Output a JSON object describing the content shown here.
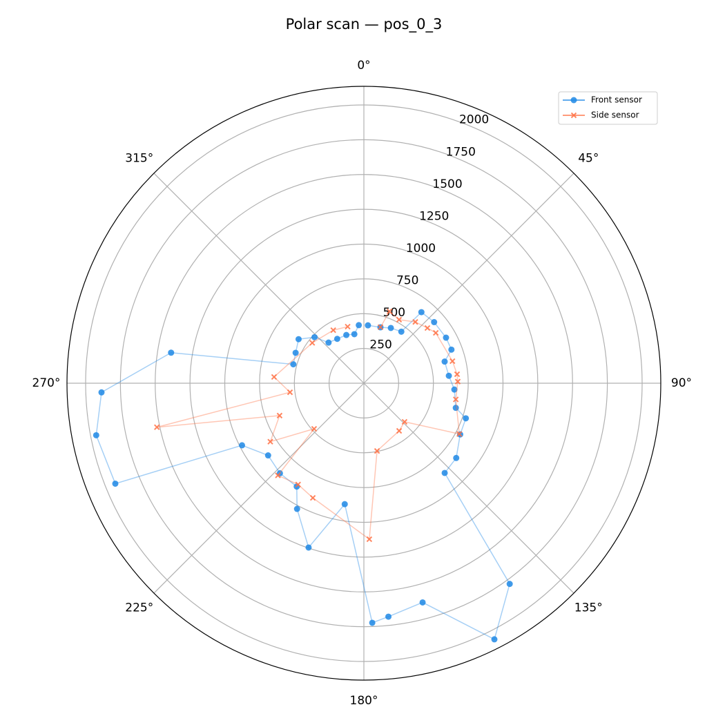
{
  "chart_data": {
    "type": "polar",
    "title": "Polar scan — pos_0_3",
    "theta_zero": "top",
    "theta_direction": "clockwise",
    "rlim": [
      0,
      2134
    ],
    "rticks": [
      250,
      500,
      750,
      1000,
      1250,
      1500,
      1750,
      2000
    ],
    "thetaticks": [
      {
        "value": 0,
        "label": "0°"
      },
      {
        "value": 45,
        "label": "45°"
      },
      {
        "value": 90,
        "label": "90°"
      },
      {
        "value": 135,
        "label": "135°"
      },
      {
        "value": 180,
        "label": "180°"
      },
      {
        "value": 225,
        "label": "225°"
      },
      {
        "value": 270,
        "label": "270°"
      },
      {
        "value": 315,
        "label": "315°"
      }
    ],
    "grid": true,
    "legend": "upper right",
    "series": [
      {
        "name": "Front sensor",
        "color": "#1e88e5",
        "marker": "o",
        "theta": [
          4,
          16.5,
          26,
          36,
          39,
          49,
          61,
          69,
          75,
          85,
          94,
          105,
          109,
          118,
          129,
          138,
          144,
          153,
          165,
          174,
          178,
          189,
          198.6,
          208,
          213,
          223,
          233,
          243,
          248,
          259,
          268,
          279,
          285,
          294,
          304,
          313,
          319,
          329,
          340,
          349,
          355
        ],
        "values": [
          417,
          419,
          442,
          458,
          657,
          669,
          675,
          674,
          601,
          613,
          652,
          684,
          775,
          784,
          854,
          868,
          1783,
          2066,
          1631,
          1687,
          1723,
          880,
          1246,
          1023,
          886,
          885,
          862,
          983,
          1927,
          1960,
          1887,
          1403,
          525,
          537,
          566,
          485,
          387,
          372,
          369,
          359,
          419
        ]
      },
      {
        "name": "Side sensor",
        "color": "#ff7043",
        "marker": "x",
        "theta": [
          16.5,
          19.6,
          29,
          40,
          49,
          55,
          76,
          84.5,
          89,
          100,
          118,
          133.5,
          143.5,
          169,
          178,
          204,
          213,
          223,
          227.5,
          238,
          249,
          258,
          263,
          274,
          308,
          330,
          344
        ],
        "values": [
          420,
          548,
          522,
          575,
          605,
          631,
          656,
          673,
          675,
          671,
          777,
          403,
          426,
          496,
          1122,
          902,
          868,
          906,
          485,
          793,
          649,
          1521,
          535,
          647,
          471,
          440,
          423
        ]
      }
    ]
  }
}
